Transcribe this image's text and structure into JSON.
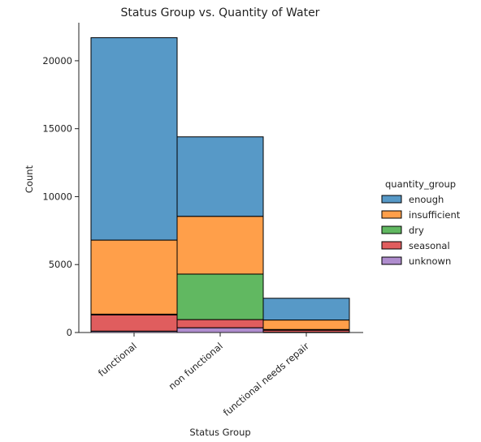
{
  "chart_data": {
    "type": "bar",
    "stacked": true,
    "title": "Status Group vs. Quantity of Water",
    "xlabel": "Status Group",
    "ylabel": "Count",
    "ylim": [
      0,
      22800
    ],
    "yticks": [
      0,
      5000,
      10000,
      15000,
      20000
    ],
    "yticklabels": [
      "0",
      "5000",
      "10000",
      "15000",
      "20000"
    ],
    "categories": [
      "functional",
      "non functional",
      "functional needs repair"
    ],
    "series": [
      {
        "name": "unknown",
        "color": "#9467bd",
        "values": [
          100,
          350,
          20
        ]
      },
      {
        "name": "seasonal",
        "color": "#d62728",
        "values": [
          1200,
          600,
          150
        ]
      },
      {
        "name": "dry",
        "color": "#2ca02c",
        "values": [
          50,
          3350,
          50
        ]
      },
      {
        "name": "insufficient",
        "color": "#ff7f0e",
        "values": [
          5450,
          4250,
          700
        ]
      },
      {
        "name": "enough",
        "color": "#1f77b4",
        "values": [
          14900,
          5850,
          1600
        ]
      }
    ],
    "legend": {
      "title": "quantity_group",
      "position": "right",
      "entries": [
        "enough",
        "insufficient",
        "dry",
        "seasonal",
        "unknown"
      ]
    }
  }
}
